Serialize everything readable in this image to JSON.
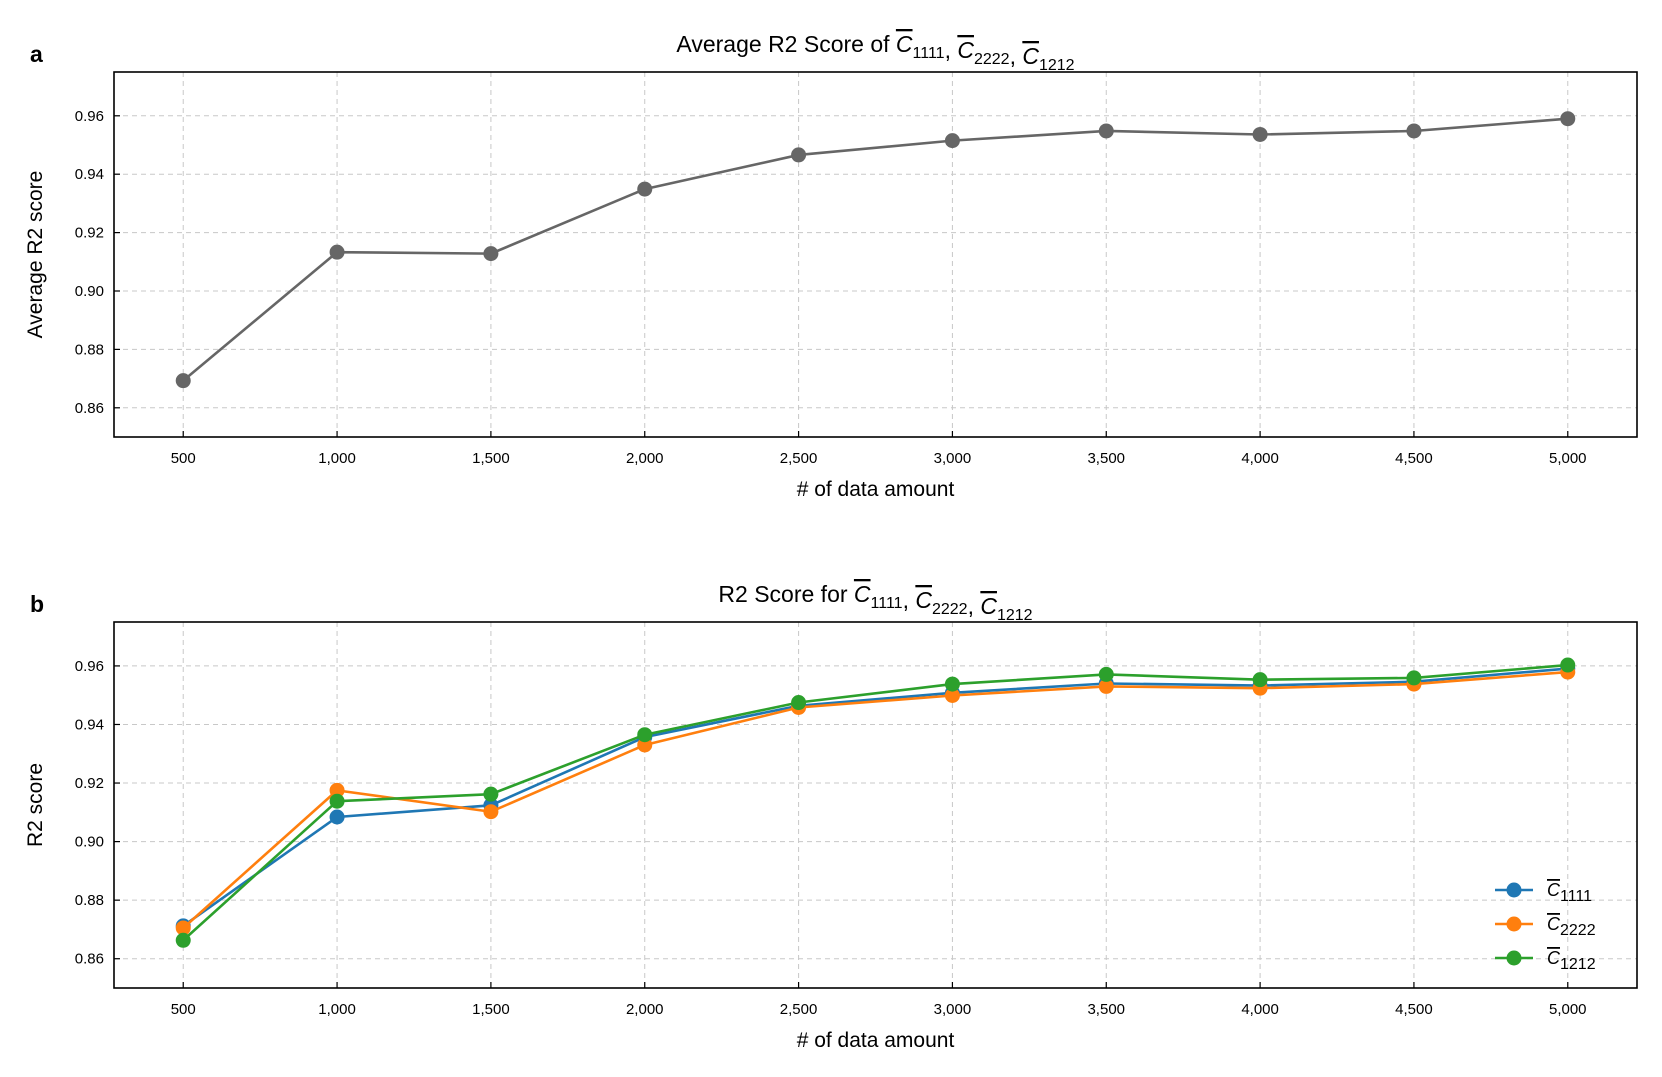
{
  "chart_data": [
    {
      "panel": "a",
      "type": "line",
      "title": {
        "prefix": "Average R2 Score of ",
        "terms": [
          {
            "symbol": "C",
            "sub": "1111"
          },
          {
            "symbol": "C",
            "sub": "2222"
          },
          {
            "symbol": "C",
            "sub": "1212"
          }
        ],
        "separator": ", "
      },
      "xlabel": "# of data amount",
      "ylabel": "Average R2 score",
      "x": [
        500,
        1000,
        1500,
        2000,
        2500,
        3000,
        3500,
        4000,
        4500,
        5000
      ],
      "xtick_labels": [
        "500",
        "1,000",
        "1,500",
        "2,000",
        "2,500",
        "3,000",
        "3,500",
        "4,000",
        "4,500",
        "5,000"
      ],
      "xlim": [
        275,
        5225
      ],
      "ylim": [
        0.85,
        0.975
      ],
      "yticks": [
        0.86,
        0.88,
        0.9,
        0.92,
        0.94,
        0.96
      ],
      "ytick_labels": [
        "0.86",
        "0.88",
        "0.90",
        "0.92",
        "0.94",
        "0.96"
      ],
      "grid": true,
      "legend": null,
      "series": [
        {
          "name": "Average",
          "color": "#666666",
          "values": [
            0.8693,
            0.9133,
            0.9128,
            0.9349,
            0.9466,
            0.9515,
            0.9548,
            0.9536,
            0.9548,
            0.959
          ]
        }
      ]
    },
    {
      "panel": "b",
      "type": "line",
      "title": {
        "prefix": "R2 Score for ",
        "terms": [
          {
            "symbol": "C",
            "sub": "1111"
          },
          {
            "symbol": "C",
            "sub": "2222"
          },
          {
            "symbol": "C",
            "sub": "1212"
          }
        ],
        "separator": ", "
      },
      "xlabel": "# of data amount",
      "ylabel": "R2 score",
      "x": [
        500,
        1000,
        1500,
        2000,
        2500,
        3000,
        3500,
        4000,
        4500,
        5000
      ],
      "xtick_labels": [
        "500",
        "1,000",
        "1,500",
        "2,000",
        "2,500",
        "3,000",
        "3,500",
        "4,000",
        "4,500",
        "5,000"
      ],
      "xlim": [
        275,
        5225
      ],
      "ylim": [
        0.85,
        0.975
      ],
      "yticks": [
        0.86,
        0.88,
        0.9,
        0.92,
        0.94,
        0.96
      ],
      "ytick_labels": [
        "0.86",
        "0.88",
        "0.90",
        "0.92",
        "0.94",
        "0.96"
      ],
      "grid": true,
      "legend": "bottom-right",
      "series": [
        {
          "name": "C1111",
          "symbol": "C",
          "sub": "1111",
          "color": "#1f77b4",
          "values": [
            0.8712,
            0.9084,
            0.9124,
            0.9357,
            0.9464,
            0.9508,
            0.954,
            0.9533,
            0.9546,
            0.9591
          ]
        },
        {
          "name": "C2222",
          "symbol": "C",
          "sub": "2222",
          "color": "#ff7f0e",
          "values": [
            0.8705,
            0.9175,
            0.9102,
            0.933,
            0.9458,
            0.9499,
            0.953,
            0.9524,
            0.9538,
            0.9579
          ]
        },
        {
          "name": "C1212",
          "symbol": "C",
          "sub": "1212",
          "color": "#2ca02c",
          "values": [
            0.8663,
            0.9138,
            0.9162,
            0.9365,
            0.9475,
            0.9538,
            0.9571,
            0.9553,
            0.9559,
            0.9603
          ]
        }
      ]
    }
  ]
}
